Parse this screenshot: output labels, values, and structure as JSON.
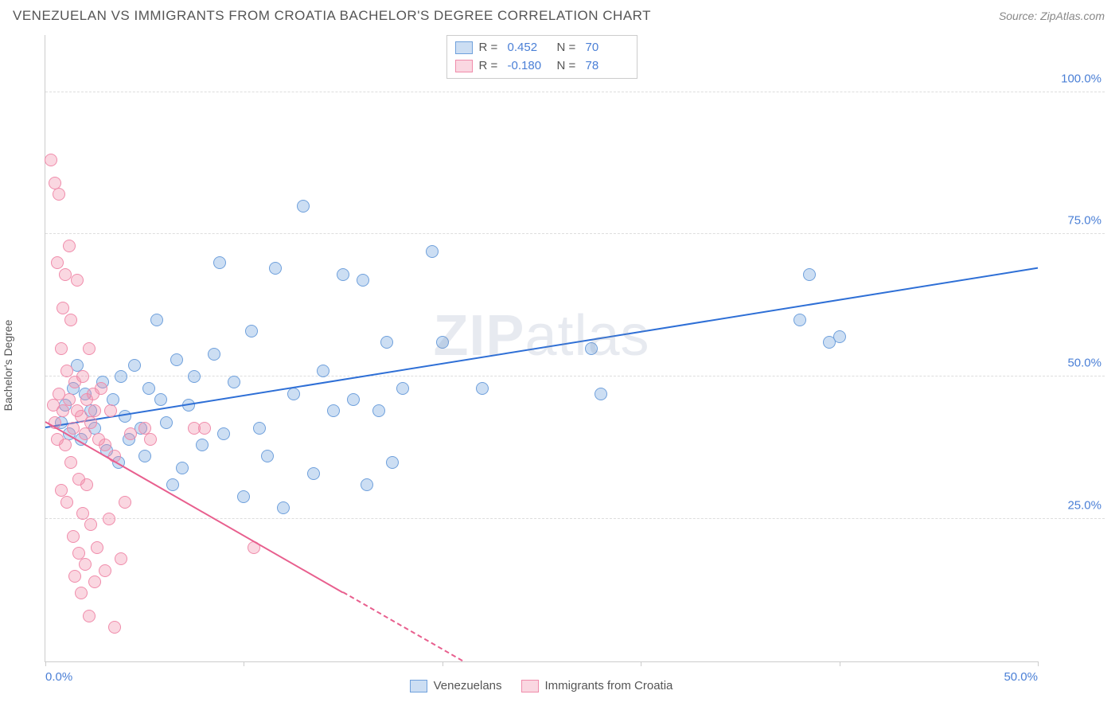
{
  "header": {
    "title": "VENEZUELAN VS IMMIGRANTS FROM CROATIA BACHELOR'S DEGREE CORRELATION CHART",
    "source": "Source: ZipAtlas.com"
  },
  "ylabel": "Bachelor's Degree",
  "watermark_bold": "ZIP",
  "watermark_rest": "atlas",
  "chart": {
    "type": "scatter",
    "background_color": "#ffffff",
    "grid_color": "#dddddd",
    "axis_color": "#cccccc",
    "xlim": [
      0,
      50
    ],
    "ylim": [
      0,
      110
    ],
    "y_ticks": [
      25,
      50,
      75,
      100
    ],
    "y_tick_labels": [
      "25.0%",
      "50.0%",
      "75.0%",
      "100.0%"
    ],
    "x_ticks": [
      0,
      10,
      20,
      30,
      40,
      50
    ],
    "x_tick_labels": [
      "0.0%",
      "",
      "",
      "",
      "",
      "50.0%"
    ],
    "marker_radius": 8,
    "marker_stroke_width": 1.5,
    "series": [
      {
        "name": "Venezuelans",
        "fill": "rgba(110,160,220,0.35)",
        "stroke": "#6fa0dc",
        "trend_color": "#2e6fd6",
        "trend": {
          "x1": 0,
          "y1": 41,
          "x2": 50,
          "y2": 69
        },
        "R": "0.452",
        "N": "70",
        "points": [
          [
            0.8,
            42
          ],
          [
            1.0,
            45
          ],
          [
            1.2,
            40
          ],
          [
            1.4,
            48
          ],
          [
            1.6,
            52
          ],
          [
            1.8,
            39
          ],
          [
            2.0,
            47
          ],
          [
            2.3,
            44
          ],
          [
            2.5,
            41
          ],
          [
            2.9,
            49
          ],
          [
            3.1,
            37
          ],
          [
            3.4,
            46
          ],
          [
            3.7,
            35
          ],
          [
            3.8,
            50
          ],
          [
            4.0,
            43
          ],
          [
            4.2,
            39
          ],
          [
            4.5,
            52
          ],
          [
            4.8,
            41
          ],
          [
            5.0,
            36
          ],
          [
            5.2,
            48
          ],
          [
            5.6,
            60
          ],
          [
            5.8,
            46
          ],
          [
            6.1,
            42
          ],
          [
            6.4,
            31
          ],
          [
            6.6,
            53
          ],
          [
            6.9,
            34
          ],
          [
            7.2,
            45
          ],
          [
            7.5,
            50
          ],
          [
            7.9,
            38
          ],
          [
            8.5,
            54
          ],
          [
            8.8,
            70
          ],
          [
            9.0,
            40
          ],
          [
            9.5,
            49
          ],
          [
            10.0,
            29
          ],
          [
            10.4,
            58
          ],
          [
            10.8,
            41
          ],
          [
            11.2,
            36
          ],
          [
            11.6,
            69
          ],
          [
            12.0,
            27
          ],
          [
            12.5,
            47
          ],
          [
            13.0,
            80
          ],
          [
            13.5,
            33
          ],
          [
            14.0,
            51
          ],
          [
            14.5,
            44
          ],
          [
            15.0,
            68
          ],
          [
            15.5,
            46
          ],
          [
            16.0,
            67
          ],
          [
            16.2,
            31
          ],
          [
            16.8,
            44
          ],
          [
            17.2,
            56
          ],
          [
            17.5,
            35
          ],
          [
            18.0,
            48
          ],
          [
            19.5,
            72
          ],
          [
            20.0,
            56
          ],
          [
            22.0,
            48
          ],
          [
            27.5,
            55
          ],
          [
            28.0,
            47
          ],
          [
            38.0,
            60
          ],
          [
            38.5,
            68
          ],
          [
            39.5,
            56
          ],
          [
            40.0,
            57
          ]
        ]
      },
      {
        "name": "Immigrants from Croatia",
        "fill": "rgba(240,140,170,0.35)",
        "stroke": "#f08cab",
        "trend_color": "#e85f8e",
        "trend_solid": {
          "x1": 0,
          "y1": 42,
          "x2": 15,
          "y2": 12
        },
        "trend_dashed": {
          "x1": 15,
          "y1": 12,
          "x2": 21,
          "y2": 0
        },
        "R": "-0.180",
        "N": "78",
        "points": [
          [
            0.3,
            88
          ],
          [
            0.4,
            45
          ],
          [
            0.5,
            84
          ],
          [
            0.5,
            42
          ],
          [
            0.6,
            70
          ],
          [
            0.6,
            39
          ],
          [
            0.7,
            82
          ],
          [
            0.7,
            47
          ],
          [
            0.8,
            55
          ],
          [
            0.8,
            30
          ],
          [
            0.9,
            62
          ],
          [
            0.9,
            44
          ],
          [
            1.0,
            68
          ],
          [
            1.0,
            38
          ],
          [
            1.1,
            51
          ],
          [
            1.1,
            28
          ],
          [
            1.2,
            73
          ],
          [
            1.2,
            46
          ],
          [
            1.3,
            35
          ],
          [
            1.3,
            60
          ],
          [
            1.4,
            41
          ],
          [
            1.4,
            22
          ],
          [
            1.5,
            49
          ],
          [
            1.5,
            15
          ],
          [
            1.6,
            44
          ],
          [
            1.6,
            67
          ],
          [
            1.7,
            32
          ],
          [
            1.7,
            19
          ],
          [
            1.8,
            43
          ],
          [
            1.8,
            12
          ],
          [
            1.9,
            50
          ],
          [
            1.9,
            26
          ],
          [
            2.0,
            40
          ],
          [
            2.0,
            17
          ],
          [
            2.1,
            46
          ],
          [
            2.1,
            31
          ],
          [
            2.2,
            55
          ],
          [
            2.2,
            8
          ],
          [
            2.3,
            42
          ],
          [
            2.3,
            24
          ],
          [
            2.4,
            47
          ],
          [
            2.5,
            14
          ],
          [
            2.5,
            44
          ],
          [
            2.6,
            20
          ],
          [
            2.7,
            39
          ],
          [
            2.8,
            48
          ],
          [
            3.0,
            16
          ],
          [
            3.0,
            38
          ],
          [
            3.2,
            25
          ],
          [
            3.3,
            44
          ],
          [
            3.5,
            6
          ],
          [
            3.5,
            36
          ],
          [
            3.8,
            18
          ],
          [
            4.0,
            28
          ],
          [
            4.3,
            40
          ],
          [
            5.0,
            41
          ],
          [
            5.3,
            39
          ],
          [
            7.5,
            41
          ],
          [
            8.0,
            41
          ],
          [
            10.5,
            20
          ]
        ]
      }
    ]
  },
  "stats_legend": {
    "R_label": "R  =",
    "N_label": "N  ="
  },
  "bottom_legend": {
    "items": [
      "Venezuelans",
      "Immigrants from Croatia"
    ]
  }
}
